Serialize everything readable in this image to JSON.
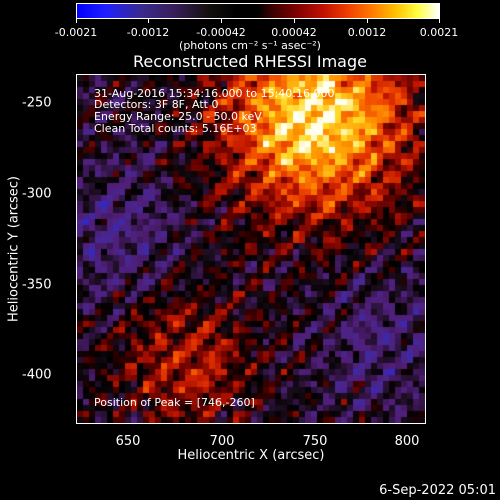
{
  "colorbar": {
    "tick_labels": [
      "-0.0021",
      "-0.0012",
      "-0.00042",
      "0.00042",
      "0.0012",
      "0.0021"
    ],
    "units": "(photons cm⁻² s⁻¹ asec⁻²)"
  },
  "title": "Reconstructed RHESSI Image",
  "info": {
    "time_range": "31-Aug-2016 15:34:16.000 to 15:40:16.000",
    "detectors": "Detectors: 3F 8F, Att 0",
    "energy_range": "Energy Range: 25.0 - 50.0 keV",
    "clean": "Clean     Total counts: 5.16E+03",
    "peak": "Position of Peak = [746,-260]"
  },
  "axes": {
    "xlabel": "Heliocentric X (arcsec)",
    "ylabel": "Heliocentric Y (arcsec)",
    "xticks": [
      "650",
      "700",
      "750",
      "800"
    ],
    "yticks": [
      "-250",
      "-300",
      "-350",
      "-400"
    ]
  },
  "timestamp": "6-Sep-2022 05:01"
}
